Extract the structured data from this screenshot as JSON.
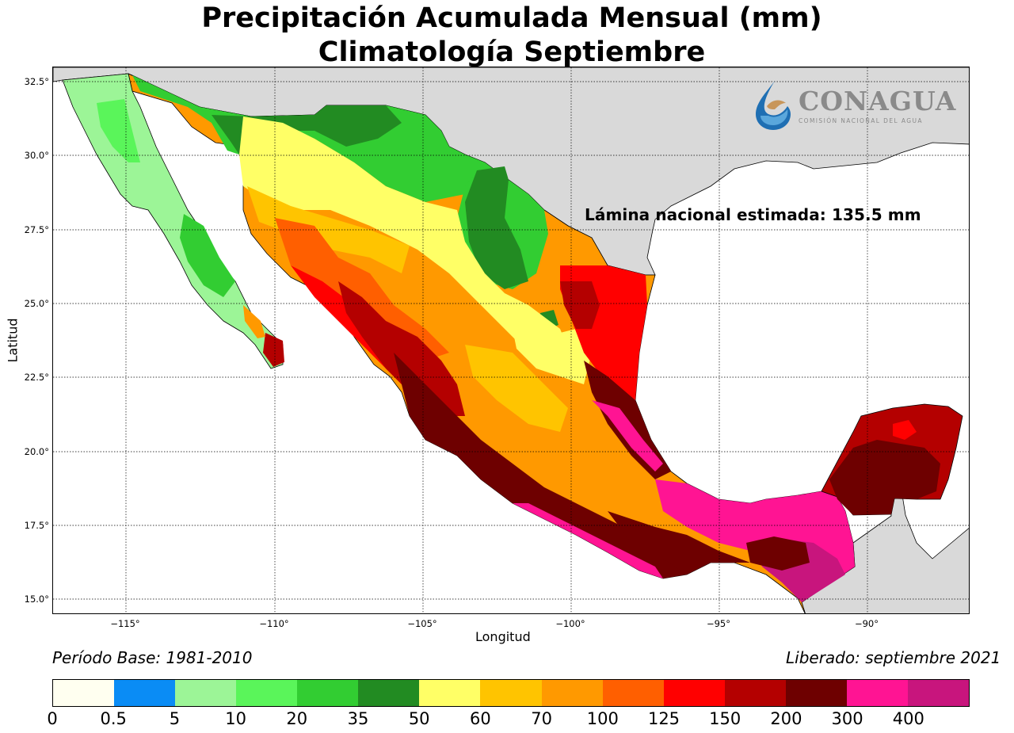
{
  "title": {
    "line1": "Precipitación Acumulada Mensual (mm)",
    "line2": "Climatología Septiembre"
  },
  "map": {
    "xlabel": "Longitud",
    "ylabel": "Latitud",
    "lon_ticks": [
      "−115°",
      "−110°",
      "−105°",
      "−100°",
      "−95°",
      "−90°"
    ],
    "lat_ticks": [
      "32.5°",
      "30.0°",
      "27.5°",
      "25.0°",
      "22.5°",
      "20.0°",
      "17.5°",
      "15.0°"
    ],
    "lon_range": [
      -117.4,
      -86.5
    ],
    "lat_range": [
      14.5,
      32.9
    ],
    "grid": "dotted",
    "land_outside_color": "#d9d9d9",
    "ocean_color": "#ffffff",
    "national_label": "Lámina nacional estimada: 135.5 mm"
  },
  "logo": {
    "name": "CONAGUA",
    "subtitle": "COMISIÓN NACIONAL DEL AGUA",
    "icon": "conagua-water-drop-logo"
  },
  "footer": {
    "period": "Período Base: 1981-2010",
    "released": "Liberado: septiembre 2021"
  },
  "colorbar": {
    "ticks": [
      "0",
      "0.5",
      "5",
      "10",
      "20",
      "35",
      "50",
      "60",
      "70",
      "100",
      "125",
      "150",
      "200",
      "300",
      "400"
    ],
    "colors": [
      "#fffff0",
      "#0a8cf5",
      "#9cf597",
      "#5af55a",
      "#32cd32",
      "#228b22",
      "#ffff66",
      "#ffc400",
      "#ff9900",
      "#ff5f00",
      "#ff0000",
      "#b40000",
      "#6e0000",
      "#ff1493",
      "#c8157d"
    ]
  }
}
